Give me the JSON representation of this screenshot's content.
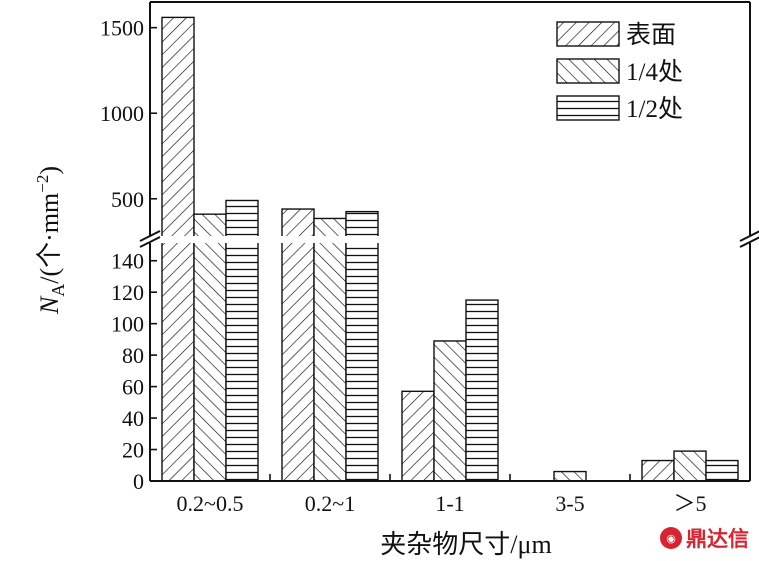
{
  "chart_data": {
    "type": "bar",
    "categories": [
      "0.2~0.5",
      "0.2~1",
      "1-1",
      "3-5",
      "＞5"
    ],
    "series": [
      {
        "name": "表面",
        "pattern": "diagonal-forward",
        "values": [
          1560,
          440,
          57,
          0,
          13
        ]
      },
      {
        "name": "1/4处",
        "pattern": "diagonal-backward",
        "values": [
          410,
          385,
          89,
          6,
          19
        ]
      },
      {
        "name": "1/2处",
        "pattern": "horizontal",
        "values": [
          490,
          425,
          115,
          0,
          13
        ]
      }
    ],
    "xlabel": "夹杂物尺寸/μm",
    "ylabel_main": "N",
    "ylabel_sub": "A",
    "ylabel_rest": "/(个·mm",
    "ylabel_sup": "−2",
    "ylabel_end": ")",
    "y_axis_broken": true,
    "y_lower_range": [
      0,
      150
    ],
    "y_upper_range": [
      300,
      1650
    ],
    "y_lower_ticks": [
      0,
      20,
      40,
      60,
      80,
      100,
      120,
      140
    ],
    "y_upper_ticks": [
      500,
      1000,
      1500
    ],
    "legend_position": "top-right",
    "colors": {
      "bar_fill": "#ffffff",
      "stroke": "#111111"
    }
  },
  "watermark": {
    "icon": "dingda-logo-icon",
    "text": "鼎达信"
  }
}
